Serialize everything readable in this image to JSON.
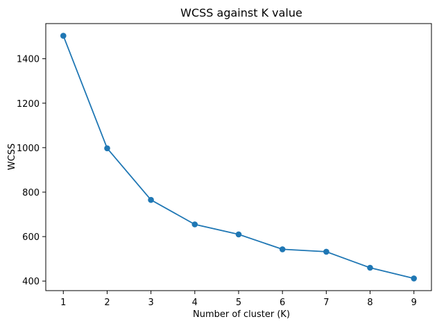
{
  "chart_data": {
    "type": "line",
    "title": "WCSS against K value",
    "xlabel": "Number of cluster (K)",
    "ylabel": "WCSS",
    "x": [
      1,
      2,
      3,
      4,
      5,
      6,
      7,
      8,
      9
    ],
    "series": [
      {
        "values": [
          1503,
          997,
          765,
          655,
          610,
          543,
          532,
          460,
          412
        ],
        "color": "#1f77b4",
        "marker": "circle"
      }
    ],
    "xticks": [
      "1",
      "2",
      "3",
      "4",
      "5",
      "6",
      "7",
      "8",
      "9"
    ],
    "yticks": [
      "400",
      "600",
      "800",
      "1000",
      "1200",
      "1400"
    ],
    "xlim": [
      0.6,
      9.4
    ],
    "ylim": [
      357,
      1558
    ],
    "grid": false,
    "legend": "none"
  }
}
